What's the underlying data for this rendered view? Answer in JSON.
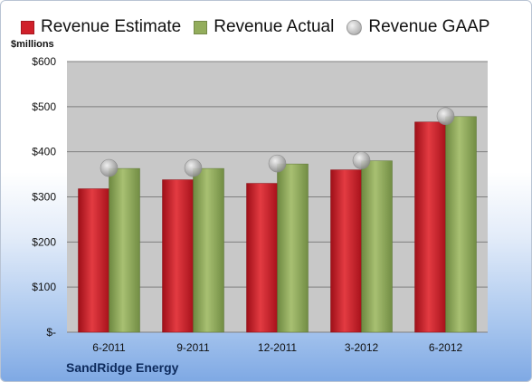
{
  "colors": {
    "estimate": "#d0202a",
    "actual": "#93ad5c",
    "gaap": "#b7b7b7",
    "plot_bg": "#c8c8c8"
  },
  "legend": {
    "estimate": "Revenue Estimate",
    "actual": "Revenue Actual",
    "gaap": "Revenue GAAP"
  },
  "company": "SandRidge Energy",
  "chart_data": {
    "type": "bar",
    "ylabel": "$millions",
    "ylim": [
      0,
      600
    ],
    "yticks": [
      0,
      100,
      200,
      300,
      400,
      500,
      600
    ],
    "ytick_labels": [
      "$-",
      "$100",
      "$200",
      "$300",
      "$400",
      "$500",
      "$600"
    ],
    "categories": [
      "6-2011",
      "9-2011",
      "12-2011",
      "3-2012",
      "6-2012"
    ],
    "series": [
      {
        "name": "Revenue Estimate",
        "kind": "bar",
        "values": [
          318,
          338,
          330,
          360,
          466
        ]
      },
      {
        "name": "Revenue Actual",
        "kind": "bar",
        "values": [
          363,
          363,
          373,
          380,
          478
        ]
      },
      {
        "name": "Revenue GAAP",
        "kind": "marker",
        "values": [
          364,
          364,
          374,
          381,
          479
        ]
      }
    ],
    "grid": true,
    "legend_position": "top"
  }
}
